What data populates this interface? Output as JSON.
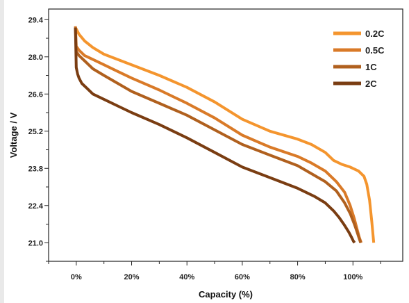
{
  "chart_data": {
    "type": "line",
    "xlabel": "Capacity (%)",
    "ylabel": "Voltage / V",
    "xlim": [
      -10,
      118
    ],
    "ylim": [
      20.3,
      29.8
    ],
    "x_ticks": [
      0,
      20,
      40,
      60,
      80,
      100
    ],
    "x_tick_labels": [
      "0%",
      "20%",
      "40%",
      "60%",
      "80%",
      "100%"
    ],
    "y_ticks": [
      21.0,
      22.4,
      23.8,
      25.2,
      26.6,
      28.0,
      29.4
    ],
    "y_tick_labels": [
      "21.0",
      "22.4",
      "23.8",
      "25.2",
      "26.6",
      "28.0",
      "29.4"
    ],
    "grid": false,
    "legend_position": "top-right",
    "series": [
      {
        "name": "0.2C",
        "color": "#F4952E",
        "x": [
          -0.3,
          0,
          1,
          3,
          6,
          10,
          15,
          20,
          30,
          40,
          50,
          60,
          70,
          80,
          85,
          90,
          93,
          96,
          99,
          102,
          104,
          105,
          106,
          106.8,
          107.5
        ],
        "y": [
          29.1,
          29.05,
          28.85,
          28.6,
          28.35,
          28.1,
          27.9,
          27.7,
          27.3,
          26.85,
          26.3,
          25.65,
          25.2,
          24.9,
          24.7,
          24.4,
          24.1,
          23.95,
          23.85,
          23.7,
          23.5,
          23.2,
          22.6,
          21.8,
          21.0
        ]
      },
      {
        "name": "0.5C",
        "color": "#D97A28",
        "x": [
          -0.3,
          0,
          1,
          3,
          6,
          10,
          15,
          20,
          30,
          40,
          50,
          60,
          70,
          80,
          85,
          90,
          94,
          97,
          99,
          100.5,
          101.5,
          102.3,
          103
        ],
        "y": [
          29.15,
          28.4,
          28.25,
          28.05,
          27.9,
          27.7,
          27.45,
          27.2,
          26.75,
          26.25,
          25.7,
          25.05,
          24.6,
          24.25,
          24.0,
          23.7,
          23.3,
          22.9,
          22.4,
          21.9,
          21.5,
          21.2,
          21.0
        ]
      },
      {
        "name": "1C",
        "color": "#B0601E",
        "x": [
          -0.3,
          0,
          1,
          3,
          6,
          10,
          15,
          20,
          30,
          40,
          50,
          60,
          70,
          80,
          85,
          90,
          94,
          97,
          99,
          100.5,
          101.5,
          102.3,
          102.8
        ],
        "y": [
          29.1,
          28.2,
          28.05,
          27.85,
          27.55,
          27.3,
          27.0,
          26.7,
          26.25,
          25.8,
          25.25,
          24.7,
          24.3,
          23.9,
          23.6,
          23.3,
          22.95,
          22.5,
          22.1,
          21.7,
          21.4,
          21.15,
          21.0
        ]
      },
      {
        "name": "2C",
        "color": "#7A3D12",
        "x": [
          -0.3,
          0,
          0.5,
          1,
          2,
          4,
          6,
          10,
          15,
          20,
          30,
          40,
          50,
          60,
          70,
          80,
          86,
          90,
          93,
          95,
          97,
          98.5,
          99.5,
          100.2,
          100.6
        ],
        "y": [
          29.1,
          27.6,
          27.35,
          27.2,
          27.0,
          26.8,
          26.6,
          26.4,
          26.15,
          25.9,
          25.45,
          24.95,
          24.4,
          23.85,
          23.45,
          23.05,
          22.75,
          22.5,
          22.2,
          21.95,
          21.65,
          21.4,
          21.2,
          21.05,
          21.0
        ]
      }
    ]
  }
}
